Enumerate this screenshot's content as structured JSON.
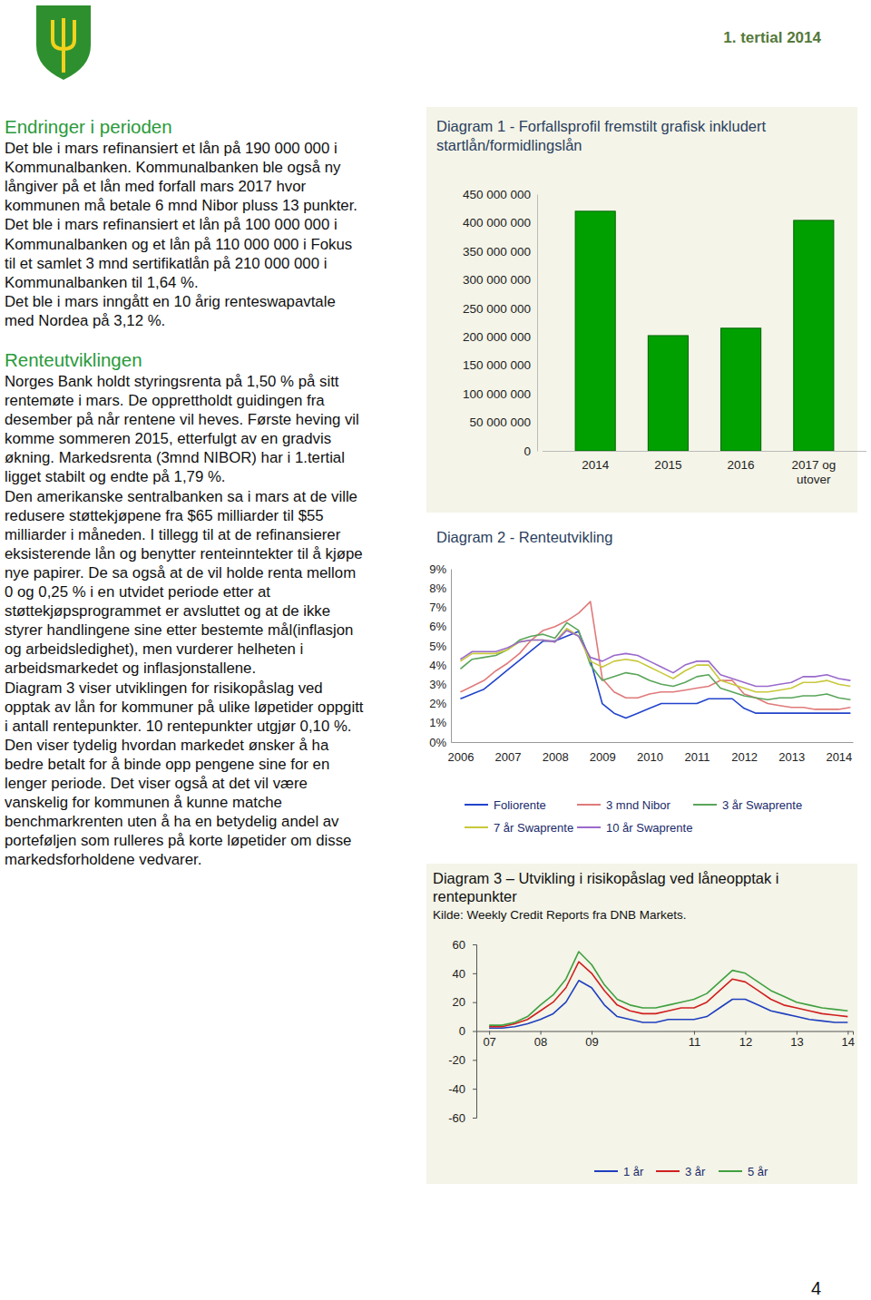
{
  "header": {
    "title": "1. tertial 2014"
  },
  "sections": [
    {
      "heading": "Endringer i perioden",
      "paragraphs": [
        [
          "Det ble i mars refinansiert et lån på 190 000 000 i",
          "Kommunalbanken. Kommunalbanken ble også ny",
          "långiver på et lån med forfall mars 2017 hvor",
          "kommunen må betale 6 mnd Nibor pluss 13 punkter."
        ],
        [
          "Det ble i mars refinansiert et lån på 100 000 000 i",
          "Kommunalbanken og et lån på 110 000 000 i Fokus",
          "til et samlet 3 mnd sertifikatlån på 210 000 000 i",
          "Kommunalbanken til 1,64 %."
        ],
        [
          "Det ble i mars inngått en 10 årig renteswapavtale",
          "med Nordea på 3,12 %."
        ]
      ]
    },
    {
      "heading": "Renteutviklingen",
      "paragraphs": [
        [
          "Norges Bank holdt styringsrenta på 1,50 % på sitt",
          "rentemøte i mars. De opprettholdt guidingen fra",
          "desember på når rentene vil heves. Første heving vil",
          "komme sommeren 2015, etterfulgt av en gradvis",
          "økning. Markedsrenta (3mnd NIBOR) har i 1.tertial",
          "ligget stabilt og endte på 1,79 %."
        ],
        [
          "Den amerikanske sentralbanken sa i mars at de ville",
          "redusere støttekjøpene fra $65 milliarder til $55",
          "milliarder i måneden. I tillegg til at de refinansierer",
          "eksisterende lån og benytter renteinntekter til å kjøpe",
          "nye papirer. De sa også at de vil holde renta mellom",
          "0 og 0,25 % i en utvidet periode etter at",
          "støttekjøpsprogrammet er avsluttet og at de ikke",
          "styrer handlingene sine etter bestemte mål(inflasjon",
          "og arbeidsledighet), men vurderer helheten i",
          "arbeidsmarkedet og inflasjonstallene."
        ],
        [
          "Diagram 3 viser utviklingen for risikopåslag ved",
          "opptak av lån for kommuner på ulike løpetider oppgitt",
          "i antall rentepunkter. 10 rentepunkter utgjør 0,10 %.",
          "Den viser tydelig hvordan markedet ønsker å ha",
          "bedre betalt for å binde opp pengene sine for en",
          "lenger periode. Det viser også at det vil være",
          "vanskelig for kommunen å kunne matche",
          "benchmarkrenten uten å ha en betydelig andel av",
          "porteføljen som rulleres på korte løpetider om disse",
          "markedsforholdene vedvarer."
        ]
      ]
    }
  ],
  "chart_data": [
    {
      "type": "bar",
      "title": "Diagram 1 - Forfallsprofil fremstilt grafisk inkludert startlån/formidlingslån",
      "categories": [
        "2014",
        "2015",
        "2016",
        "2017 og utover"
      ],
      "values": [
        420000000,
        202000000,
        215000000,
        404000000
      ],
      "color": "#00a000",
      "ylim": [
        0,
        450000000
      ],
      "yticks": [
        0,
        {
          "value": 50000000,
          "label": "50 000 000"
        },
        {
          "value": 100000000,
          "label": "100 000 000"
        },
        {
          "value": 150000000,
          "label": "150 000 000"
        },
        {
          "value": 200000000,
          "label": "200 000 000"
        },
        {
          "value": 250000000,
          "label": "250 000 000"
        },
        {
          "value": 300000000,
          "label": "300 000 000"
        },
        {
          "value": 350000000,
          "label": "350 000 000"
        },
        {
          "value": 400000000,
          "label": "400 000 000"
        },
        {
          "value": 450000000,
          "label": "450 000 000"
        }
      ]
    },
    {
      "type": "line",
      "title": "Diagram 2 - Renteutvikling",
      "x": [
        2006,
        2006.25,
        2006.5,
        2006.75,
        2007,
        2007.25,
        2007.5,
        2007.75,
        2008,
        2008.25,
        2008.5,
        2008.75,
        2009,
        2009.25,
        2009.5,
        2009.75,
        2010,
        2010.25,
        2010.5,
        2010.75,
        2011,
        2011.25,
        2011.5,
        2011.75,
        2012,
        2012.25,
        2012.5,
        2012.75,
        2013,
        2013.25,
        2013.5,
        2013.75,
        2014,
        2014.25
      ],
      "series": [
        {
          "name": "Foliorente",
          "color": "#2244cc",
          "values": [
            2.25,
            2.5,
            2.75,
            3.25,
            3.75,
            4.25,
            4.75,
            5.25,
            5.25,
            5.5,
            5.75,
            4.25,
            2.0,
            1.5,
            1.25,
            1.5,
            1.75,
            2.0,
            2.0,
            2.0,
            2.0,
            2.25,
            2.25,
            2.25,
            1.75,
            1.5,
            1.5,
            1.5,
            1.5,
            1.5,
            1.5,
            1.5,
            1.5,
            1.5
          ]
        },
        {
          "name": "3 mnd Nibor",
          "color": "#e07a7a",
          "values": [
            2.6,
            2.9,
            3.2,
            3.7,
            4.1,
            4.6,
            5.3,
            5.8,
            6.0,
            6.3,
            6.7,
            7.3,
            3.3,
            2.6,
            2.3,
            2.3,
            2.5,
            2.6,
            2.6,
            2.7,
            2.8,
            2.9,
            3.2,
            3.2,
            2.5,
            2.3,
            2.0,
            1.9,
            1.8,
            1.8,
            1.7,
            1.7,
            1.7,
            1.8
          ]
        },
        {
          "name": "3 år Swaprente",
          "color": "#5aa55a",
          "values": [
            3.8,
            4.3,
            4.4,
            4.5,
            4.8,
            5.3,
            5.5,
            5.6,
            5.4,
            6.2,
            5.8,
            4.0,
            3.2,
            3.4,
            3.6,
            3.5,
            3.2,
            3.0,
            2.9,
            3.1,
            3.4,
            3.5,
            2.8,
            2.6,
            2.4,
            2.3,
            2.2,
            2.3,
            2.3,
            2.4,
            2.4,
            2.5,
            2.3,
            2.2
          ]
        },
        {
          "name": "7 år Swaprente",
          "color": "#c8c83c",
          "values": [
            4.2,
            4.6,
            4.6,
            4.6,
            4.8,
            5.2,
            5.3,
            5.3,
            5.2,
            5.9,
            5.5,
            4.2,
            3.9,
            4.2,
            4.3,
            4.2,
            3.9,
            3.6,
            3.3,
            3.7,
            4.0,
            4.0,
            3.2,
            3.0,
            2.8,
            2.6,
            2.6,
            2.7,
            2.8,
            3.1,
            3.1,
            3.2,
            3.0,
            2.9
          ]
        },
        {
          "name": "10 år Swaprente",
          "color": "#9a6acc",
          "values": [
            4.3,
            4.7,
            4.7,
            4.7,
            4.9,
            5.2,
            5.3,
            5.3,
            5.2,
            5.8,
            5.5,
            4.4,
            4.2,
            4.5,
            4.6,
            4.5,
            4.2,
            3.9,
            3.6,
            4.0,
            4.2,
            4.2,
            3.5,
            3.3,
            3.1,
            2.9,
            2.9,
            3.0,
            3.1,
            3.4,
            3.4,
            3.5,
            3.3,
            3.2
          ]
        }
      ],
      "xlim": [
        2005.8,
        2014.3
      ],
      "xticks": [
        2006,
        2007,
        2008,
        2009,
        2010,
        2011,
        2012,
        2013,
        2014
      ],
      "ylim": [
        0,
        9
      ],
      "yticks": [
        {
          "value": 0,
          "label": "0%"
        },
        {
          "value": 1,
          "label": "1%"
        },
        {
          "value": 2,
          "label": "2%"
        },
        {
          "value": 3,
          "label": "3%"
        },
        {
          "value": 4,
          "label": "4%"
        },
        {
          "value": 5,
          "label": "5%"
        },
        {
          "value": 6,
          "label": "6%"
        },
        {
          "value": 7,
          "label": "7%"
        },
        {
          "value": 8,
          "label": "8%"
        },
        {
          "value": 9,
          "label": "9%"
        }
      ],
      "legend": "bottom"
    },
    {
      "type": "line",
      "title": "Diagram 3 – Utvikling i risikopåslag ved låneopptak i rentepunkter",
      "subtitle": "Kilde: Weekly Credit Reports fra DNB Markets.",
      "x": [
        2007,
        2007.25,
        2007.5,
        2007.75,
        2008,
        2008.25,
        2008.5,
        2008.75,
        2009,
        2009.25,
        2009.5,
        2009.75,
        2010,
        2010.25,
        2010.5,
        2010.75,
        2011,
        2011.25,
        2011.5,
        2011.75,
        2012,
        2012.25,
        2012.5,
        2012.75,
        2013,
        2013.25,
        2013.5,
        2013.75,
        2014
      ],
      "series": [
        {
          "name": "1 år",
          "color": "#1f3fbf",
          "values": [
            2,
            2,
            3,
            5,
            8,
            12,
            20,
            35,
            30,
            18,
            10,
            8,
            6,
            6,
            8,
            8,
            8,
            10,
            16,
            22,
            22,
            18,
            14,
            12,
            10,
            8,
            7,
            6,
            6
          ]
        },
        {
          "name": "3 år",
          "color": "#d02020",
          "values": [
            3,
            3,
            5,
            8,
            14,
            20,
            30,
            48,
            40,
            28,
            18,
            14,
            12,
            12,
            14,
            16,
            16,
            20,
            28,
            36,
            34,
            28,
            22,
            18,
            16,
            14,
            12,
            11,
            10
          ]
        },
        {
          "name": "5 år",
          "color": "#40a040",
          "values": [
            4,
            4,
            6,
            10,
            18,
            25,
            36,
            55,
            46,
            32,
            22,
            18,
            16,
            16,
            18,
            20,
            22,
            26,
            34,
            42,
            40,
            34,
            28,
            24,
            20,
            18,
            16,
            15,
            14
          ]
        }
      ],
      "xlim": [
        2006.75,
        2014.1
      ],
      "xticks": [
        {
          "value": 2007,
          "label": "07"
        },
        {
          "value": 2008,
          "label": "08"
        },
        {
          "value": 2009,
          "label": "09"
        },
        {
          "value": 2011,
          "label": "11"
        },
        {
          "value": 2012,
          "label": "12"
        },
        {
          "value": 2013,
          "label": "13"
        },
        {
          "value": 2014,
          "label": "14"
        }
      ],
      "ylim": [
        -60,
        60
      ],
      "yticks": [
        60,
        40,
        20,
        0,
        -20,
        -40,
        -60
      ],
      "legend": "bottom"
    }
  ],
  "page_number": 4
}
